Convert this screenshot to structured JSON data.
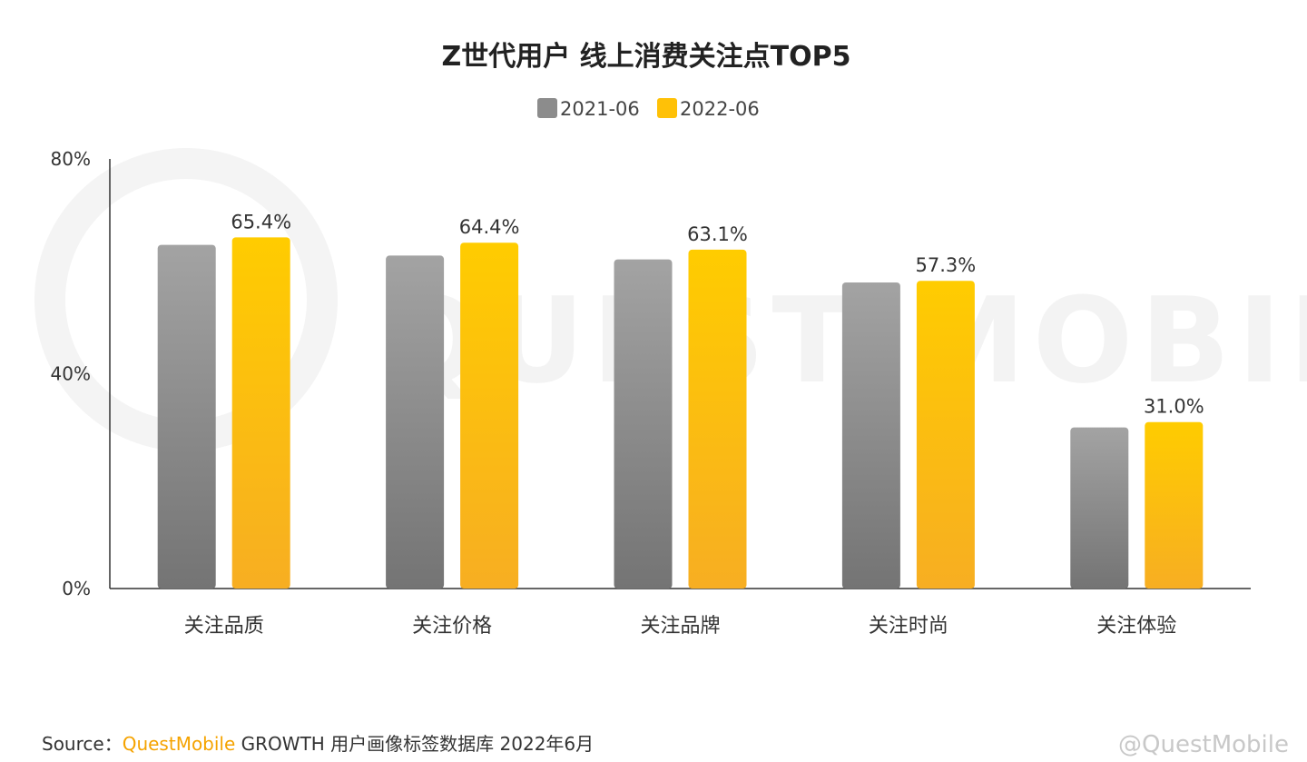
{
  "chart_data": {
    "type": "bar",
    "title": "Z世代用户 线上消费关注点TOP5",
    "categories": [
      "关注品质",
      "关注价格",
      "关注品牌",
      "关注时尚",
      "关注体验"
    ],
    "series": [
      {
        "name": "2021-06",
        "values": [
          64.0,
          62.0,
          61.3,
          57.0,
          30.0
        ],
        "color": "#8c8c8c"
      },
      {
        "name": "2022-06",
        "values": [
          65.4,
          64.4,
          63.1,
          57.3,
          31.0
        ],
        "color": "#f9b51a"
      }
    ],
    "data_labels": [
      "65.4%",
      "64.4%",
      "63.1%",
      "57.3%",
      "31.0%"
    ],
    "yticks": [
      "0%",
      "40%",
      "80%"
    ],
    "ylim": [
      0,
      80
    ],
    "legend_position": "top-center",
    "grid": false
  },
  "source": {
    "prefix": "Source：",
    "brand": "QuestMobile",
    "text": "GROWTH 用户画像标签数据库 2022年6月"
  },
  "watermark": {
    "text": "QUEST MOBILE"
  },
  "corner_mark": {
    "text": "@QuestMobile"
  }
}
